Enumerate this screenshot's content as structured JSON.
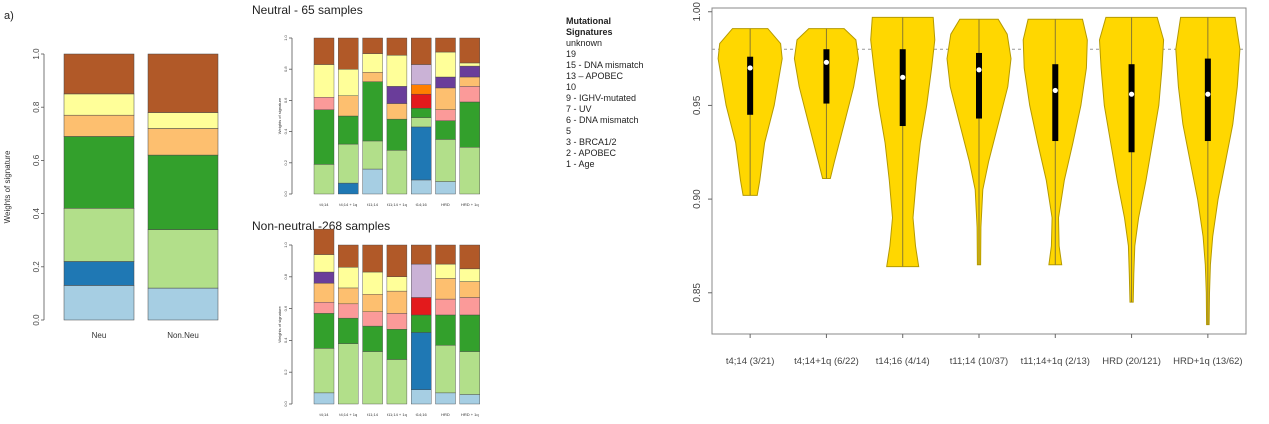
{
  "panel_label": "a)",
  "legend": {
    "title_line1": "Mutational",
    "title_line2": "Signatures",
    "items": [
      "unknown",
      "19",
      "15 - DNA mismatch",
      "13 – APOBEC",
      "10",
      "9 - IGHV-mutated",
      "7 - UV",
      "6 - DNA mismatch",
      "5",
      "3 - BRCA1/2",
      "2 - APOBEC",
      "1 - Age"
    ]
  },
  "colors": {
    "Age": "#a6cee3",
    "APOBEC2": "#1f78b4",
    "BRCA": "#b2df8a",
    "S5": "#33a02c",
    "DNA6": "#fb9a99",
    "UV": "#e31a1c",
    "IGHV": "#fdbf6f",
    "S10": "#ff7f00",
    "APOBEC13": "#cab2d6",
    "DNA15": "#6a3d9a",
    "S19": "#ffff99",
    "unknown": "#b15928",
    "violin": "#ffd700",
    "violin_stroke": "#b59a00"
  },
  "chart_data": [
    {
      "type": "bar",
      "stacked": true,
      "categories": [
        "Neu",
        "Non.Neu"
      ],
      "ylabel": "Weights of signature",
      "ylim": [
        0,
        1
      ],
      "yticks": [
        "0.0",
        "0.2",
        "0.4",
        "0.6",
        "0.8",
        "1.0"
      ],
      "stack_order_bottom_to_top": [
        "Age",
        "APOBEC2",
        "BRCA",
        "S5",
        "IGHV",
        "S19",
        "unknown"
      ],
      "series": [
        {
          "name": "1 - Age",
          "key": "Age",
          "values": [
            0.13,
            0.12
          ]
        },
        {
          "name": "2 - APOBEC",
          "key": "APOBEC2",
          "values": [
            0.09,
            0.0
          ]
        },
        {
          "name": "3 - BRCA1/2",
          "key": "BRCA",
          "values": [
            0.2,
            0.22
          ]
        },
        {
          "name": "5",
          "key": "S5",
          "values": [
            0.27,
            0.28
          ]
        },
        {
          "name": "9 - IGHV-mutated",
          "key": "IGHV",
          "values": [
            0.08,
            0.1
          ]
        },
        {
          "name": "19",
          "key": "S19",
          "values": [
            0.08,
            0.06
          ]
        },
        {
          "name": "unknown",
          "key": "unknown",
          "values": [
            0.15,
            0.22
          ]
        }
      ]
    },
    {
      "type": "bar",
      "stacked": true,
      "title": "Neutral - 65 samples",
      "ylabel": "Weights of signature",
      "ylim": [
        0,
        1
      ],
      "yticks": [
        "0.0",
        "0.2",
        "0.4",
        "0.6",
        "0.8",
        "1.0"
      ],
      "categories": [
        "t4;14",
        "t4;14 + 1q",
        "t11;14",
        "t11;14 + 1q",
        "t14;16",
        "HRD",
        "HRD + 1q"
      ],
      "bars": [
        [
          [
            "Age",
            0.0
          ],
          [
            "BRCA",
            0.19
          ],
          [
            "S5",
            0.35
          ],
          [
            "DNA6",
            0.08
          ],
          [
            "S19",
            0.21
          ],
          [
            "unknown",
            0.17
          ]
        ],
        [
          [
            "Age",
            0.0
          ],
          [
            "APOBEC2",
            0.07
          ],
          [
            "BRCA",
            0.25
          ],
          [
            "S5",
            0.18
          ],
          [
            "IGHV",
            0.13
          ],
          [
            "S19",
            0.17
          ],
          [
            "unknown",
            0.2
          ]
        ],
        [
          [
            "Age",
            0.16
          ],
          [
            "BRCA",
            0.18
          ],
          [
            "S5",
            0.38
          ],
          [
            "IGHV",
            0.06
          ],
          [
            "S19",
            0.12
          ],
          [
            "unknown",
            0.1
          ]
        ],
        [
          [
            "Age",
            0.0
          ],
          [
            "BRCA",
            0.28
          ],
          [
            "S5",
            0.2
          ],
          [
            "IGHV",
            0.1
          ],
          [
            "DNA15",
            0.11
          ],
          [
            "S19",
            0.2
          ],
          [
            "unknown",
            0.11
          ]
        ],
        [
          [
            "Age",
            0.09
          ],
          [
            "APOBEC2",
            0.34
          ],
          [
            "BRCA",
            0.06
          ],
          [
            "S5",
            0.06
          ],
          [
            "UV",
            0.09
          ],
          [
            "S10",
            0.06
          ],
          [
            "APOBEC13",
            0.13
          ],
          [
            "unknown",
            0.17
          ]
        ],
        [
          [
            "Age",
            0.08
          ],
          [
            "BRCA",
            0.27
          ],
          [
            "S5",
            0.12
          ],
          [
            "DNA6",
            0.07
          ],
          [
            "IGHV",
            0.14
          ],
          [
            "DNA15",
            0.07
          ],
          [
            "S19",
            0.16
          ],
          [
            "unknown",
            0.09
          ]
        ],
        [
          [
            "Age",
            0.0
          ],
          [
            "BRCA",
            0.3
          ],
          [
            "S5",
            0.29
          ],
          [
            "DNA6",
            0.1
          ],
          [
            "IGHV",
            0.06
          ],
          [
            "DNA15",
            0.07
          ],
          [
            "S19",
            0.02
          ],
          [
            "unknown",
            0.16
          ]
        ]
      ]
    },
    {
      "type": "bar",
      "stacked": true,
      "title": "Non-neutral -268 samples",
      "ylabel": "Weights of signature",
      "ylim": [
        0,
        1
      ],
      "yticks": [
        "0.0",
        "0.2",
        "0.4",
        "0.6",
        "0.8",
        "1.0"
      ],
      "categories": [
        "t4;14",
        "t4;14 + 1q",
        "t11;14",
        "t11;14 + 1q",
        "t14;16",
        "HRD",
        "HRD + 1q"
      ],
      "bars": [
        [
          [
            "Age",
            0.07
          ],
          [
            "BRCA",
            0.28
          ],
          [
            "S5",
            0.22
          ],
          [
            "DNA6",
            0.07
          ],
          [
            "IGHV",
            0.12
          ],
          [
            "DNA15",
            0.07
          ],
          [
            "S19",
            0.11
          ],
          [
            "unknown",
            0.16
          ]
        ],
        [
          [
            "Age",
            0.0
          ],
          [
            "BRCA",
            0.38
          ],
          [
            "S5",
            0.16
          ],
          [
            "DNA6",
            0.09
          ],
          [
            "IGHV",
            0.1
          ],
          [
            "S19",
            0.13
          ],
          [
            "unknown",
            0.14
          ]
        ],
        [
          [
            "Age",
            0.0
          ],
          [
            "BRCA",
            0.33
          ],
          [
            "S5",
            0.16
          ],
          [
            "DNA6",
            0.09
          ],
          [
            "IGHV",
            0.11
          ],
          [
            "S19",
            0.14
          ],
          [
            "unknown",
            0.17
          ]
        ],
        [
          [
            "Age",
            0.0
          ],
          [
            "BRCA",
            0.28
          ],
          [
            "S5",
            0.19
          ],
          [
            "DNA6",
            0.1
          ],
          [
            "IGHV",
            0.14
          ],
          [
            "S19",
            0.09
          ],
          [
            "unknown",
            0.2
          ]
        ],
        [
          [
            "Age",
            0.09
          ],
          [
            "APOBEC2",
            0.36
          ],
          [
            "BRCA",
            0.0
          ],
          [
            "S5",
            0.11
          ],
          [
            "UV",
            0.11
          ],
          [
            "APOBEC13",
            0.21
          ],
          [
            "unknown",
            0.12
          ]
        ],
        [
          [
            "Age",
            0.07
          ],
          [
            "BRCA",
            0.3
          ],
          [
            "S5",
            0.19
          ],
          [
            "DNA6",
            0.1
          ],
          [
            "IGHV",
            0.13
          ],
          [
            "S19",
            0.09
          ],
          [
            "unknown",
            0.12
          ]
        ],
        [
          [
            "Age",
            0.06
          ],
          [
            "BRCA",
            0.27
          ],
          [
            "S5",
            0.23
          ],
          [
            "DNA6",
            0.11
          ],
          [
            "IGHV",
            0.1
          ],
          [
            "S19",
            0.08
          ],
          [
            "unknown",
            0.15
          ]
        ]
      ]
    },
    {
      "type": "violin",
      "categories": [
        "t4;14 (3/21)",
        "t4;14+1q (6/22)",
        "t14;16 (4/14)",
        "t11;14 (10/37)",
        "t11;14+1q (2/13)",
        "HRD (20/121)",
        "HRD+1q (13/62)"
      ],
      "ylim": [
        0.828,
        1.002
      ],
      "yticks": [
        "0.85",
        "0.90",
        "0.95",
        "1.00"
      ],
      "ytick_values": [
        0.85,
        0.9,
        0.95,
        1.0
      ],
      "reference_line": 0.98,
      "violins": [
        {
          "min": 0.902,
          "max": 0.991,
          "q1": 0.945,
          "median": 0.97,
          "q3": 0.976,
          "profile": [
            [
              0.902,
              0.22
            ],
            [
              0.91,
              0.3
            ],
            [
              0.93,
              0.45
            ],
            [
              0.95,
              0.75
            ],
            [
              0.965,
              0.9
            ],
            [
              0.975,
              1.0
            ],
            [
              0.983,
              0.95
            ],
            [
              0.991,
              0.55
            ]
          ]
        },
        {
          "min": 0.911,
          "max": 0.991,
          "q1": 0.951,
          "median": 0.973,
          "q3": 0.98,
          "profile": [
            [
              0.911,
              0.12
            ],
            [
              0.92,
              0.25
            ],
            [
              0.94,
              0.55
            ],
            [
              0.96,
              0.85
            ],
            [
              0.975,
              1.0
            ],
            [
              0.985,
              0.92
            ],
            [
              0.991,
              0.55
            ]
          ]
        },
        {
          "min": 0.864,
          "max": 0.997,
          "q1": 0.939,
          "median": 0.965,
          "q3": 0.98,
          "profile": [
            [
              0.864,
              0.5
            ],
            [
              0.875,
              0.4
            ],
            [
              0.89,
              0.32
            ],
            [
              0.91,
              0.42
            ],
            [
              0.93,
              0.55
            ],
            [
              0.95,
              0.75
            ],
            [
              0.97,
              0.9
            ],
            [
              0.985,
              1.0
            ],
            [
              0.997,
              0.95
            ]
          ]
        },
        {
          "min": 0.865,
          "max": 0.996,
          "q1": 0.943,
          "median": 0.969,
          "q3": 0.978,
          "profile": [
            [
              0.865,
              0.05
            ],
            [
              0.885,
              0.06
            ],
            [
              0.905,
              0.12
            ],
            [
              0.92,
              0.3
            ],
            [
              0.94,
              0.6
            ],
            [
              0.96,
              0.9
            ],
            [
              0.975,
              1.0
            ],
            [
              0.988,
              0.88
            ],
            [
              0.996,
              0.6
            ]
          ]
        },
        {
          "min": 0.865,
          "max": 0.996,
          "q1": 0.931,
          "median": 0.958,
          "q3": 0.972,
          "profile": [
            [
              0.865,
              0.2
            ],
            [
              0.875,
              0.12
            ],
            [
              0.89,
              0.1
            ],
            [
              0.91,
              0.28
            ],
            [
              0.93,
              0.55
            ],
            [
              0.95,
              0.8
            ],
            [
              0.97,
              0.97
            ],
            [
              0.985,
              1.0
            ],
            [
              0.996,
              0.85
            ]
          ]
        },
        {
          "min": 0.845,
          "max": 0.997,
          "q1": 0.925,
          "median": 0.956,
          "q3": 0.972,
          "profile": [
            [
              0.845,
              0.05
            ],
            [
              0.86,
              0.07
            ],
            [
              0.875,
              0.1
            ],
            [
              0.89,
              0.22
            ],
            [
              0.91,
              0.45
            ],
            [
              0.93,
              0.65
            ],
            [
              0.95,
              0.85
            ],
            [
              0.97,
              0.95
            ],
            [
              0.985,
              1.0
            ],
            [
              0.997,
              0.8
            ]
          ]
        },
        {
          "min": 0.833,
          "max": 0.997,
          "q1": 0.931,
          "median": 0.956,
          "q3": 0.975,
          "profile": [
            [
              0.833,
              0.04
            ],
            [
              0.85,
              0.05
            ],
            [
              0.865,
              0.08
            ],
            [
              0.88,
              0.15
            ],
            [
              0.9,
              0.32
            ],
            [
              0.92,
              0.55
            ],
            [
              0.94,
              0.78
            ],
            [
              0.96,
              0.92
            ],
            [
              0.98,
              1.0
            ],
            [
              0.997,
              0.85
            ]
          ]
        }
      ]
    }
  ]
}
